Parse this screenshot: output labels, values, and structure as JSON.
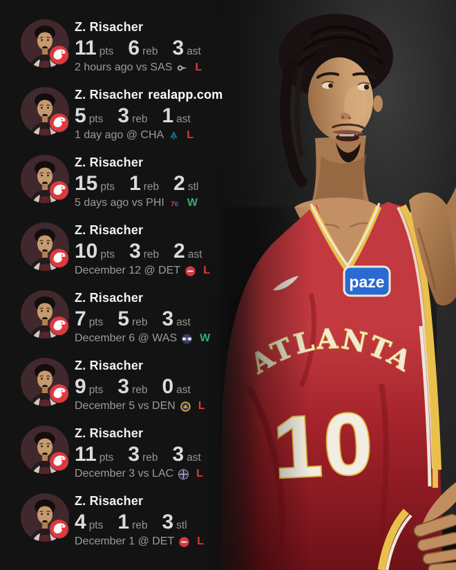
{
  "page": {
    "background": "#131313"
  },
  "watermark_text": "realapp.com",
  "result_colors": {
    "W": "#2fae6e",
    "L": "#e0363d"
  },
  "player_badge": "atlanta-hawks",
  "games": [
    {
      "player": "Z. Risacher",
      "watermark": "",
      "stats": [
        {
          "value": "11",
          "label": "pts"
        },
        {
          "value": "6",
          "label": "reb"
        },
        {
          "value": "3",
          "label": "ast"
        }
      ],
      "date_text": "2 hours ago vs SAS",
      "opponent_logo": "spurs",
      "result": "L"
    },
    {
      "player": "Z. Risacher",
      "watermark": "realapp.com",
      "stats": [
        {
          "value": "5",
          "label": "pts"
        },
        {
          "value": "3",
          "label": "reb"
        },
        {
          "value": "1",
          "label": "ast"
        }
      ],
      "date_text": "1 day ago @ CHA",
      "opponent_logo": "hornets",
      "result": "L"
    },
    {
      "player": "Z. Risacher",
      "watermark": "",
      "stats": [
        {
          "value": "15",
          "label": "pts"
        },
        {
          "value": "1",
          "label": "reb"
        },
        {
          "value": "2",
          "label": "stl"
        }
      ],
      "date_text": "5 days ago vs PHI",
      "opponent_logo": "sixers",
      "result": "W"
    },
    {
      "player": "Z. Risacher",
      "watermark": "",
      "stats": [
        {
          "value": "10",
          "label": "pts"
        },
        {
          "value": "3",
          "label": "reb"
        },
        {
          "value": "2",
          "label": "ast"
        }
      ],
      "date_text": "December 12 @ DET",
      "opponent_logo": "pistons",
      "result": "L"
    },
    {
      "player": "Z. Risacher",
      "watermark": "",
      "stats": [
        {
          "value": "7",
          "label": "pts"
        },
        {
          "value": "5",
          "label": "reb"
        },
        {
          "value": "3",
          "label": "ast"
        }
      ],
      "date_text": "December 6 @ WAS",
      "opponent_logo": "wizards",
      "result": "W"
    },
    {
      "player": "Z. Risacher",
      "watermark": "",
      "stats": [
        {
          "value": "9",
          "label": "pts"
        },
        {
          "value": "3",
          "label": "reb"
        },
        {
          "value": "0",
          "label": "ast"
        }
      ],
      "date_text": "December 5 vs DEN",
      "opponent_logo": "nuggets",
      "result": "L"
    },
    {
      "player": "Z. Risacher",
      "watermark": "",
      "stats": [
        {
          "value": "11",
          "label": "pts"
        },
        {
          "value": "3",
          "label": "reb"
        },
        {
          "value": "3",
          "label": "ast"
        }
      ],
      "date_text": "December 3 vs LAC",
      "opponent_logo": "clippers",
      "result": "L"
    },
    {
      "player": "Z. Risacher",
      "watermark": "",
      "stats": [
        {
          "value": "4",
          "label": "pts"
        },
        {
          "value": "1",
          "label": "reb"
        },
        {
          "value": "3",
          "label": "stl"
        }
      ],
      "date_text": "December 1 @ DET",
      "opponent_logo": "pistons",
      "result": "L"
    }
  ],
  "team_logos": {
    "spurs": {
      "primary": "#9aa0a4",
      "dark": "#1a1a1a"
    },
    "hornets": {
      "primary": "#0a8290",
      "secondary": "#2b2550"
    },
    "sixers": {
      "seven": "#e23b57",
      "six": "#3b63c9"
    },
    "pistons": {
      "primary": "#d03a42",
      "band": "#f3f3f3"
    },
    "wizards": {
      "primary": "#27406e",
      "band": "#e8e8e8",
      "center": "#c63a46"
    },
    "nuggets": {
      "ring": "#d9a940",
      "inner": "#26354f"
    },
    "clippers": {
      "primary": "#222a52",
      "cross": "#b8bec9",
      "center": "#c33b4a"
    }
  },
  "photo": {
    "description": "player-in-hawks-jersey",
    "jersey": {
      "team_text": "ATLANTA",
      "number": "10",
      "sponsor": "paze"
    },
    "colors": {
      "jersey_red": "#b32c31",
      "trim_gold": "#e9c04a",
      "trim_white": "#efe8d8",
      "sponsor_blue": "#2a6bd3"
    }
  }
}
